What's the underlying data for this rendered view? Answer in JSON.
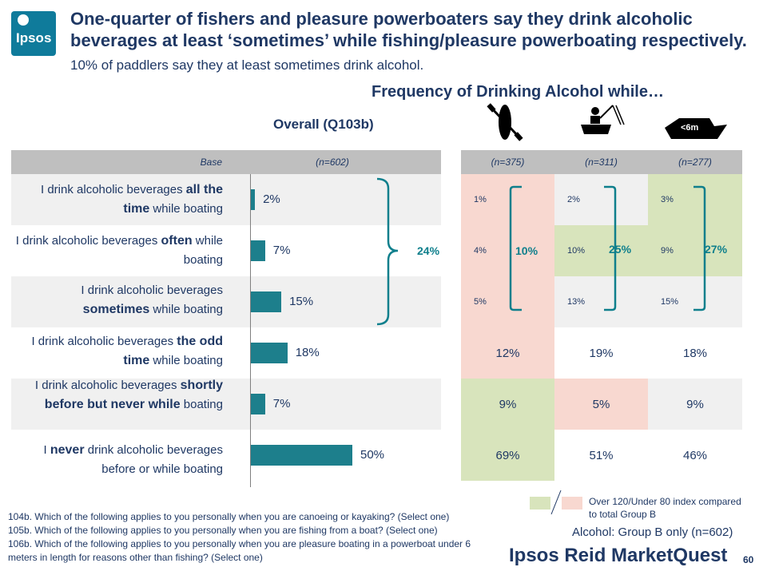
{
  "logo_text": "Ipsos",
  "headline_bold": "One-quarter of fishers and pleasure powerboaters say they drink alcoholic beverages at least ‘sometimes’ while fishing/pleasure powerboating respectively.",
  "headline_normal": " 10% of paddlers say they at least sometimes drink alcohol.",
  "subtitle": "Frequency of Drinking Alcohol while…",
  "overall_label": "Overall  (Q103b)",
  "base_label": "Base",
  "boat_icon_text": "<6m",
  "chart_data": {
    "type": "bar",
    "orientation": "horizontal",
    "categories": [
      "I drink alcoholic beverages all the time while boating",
      "I drink alcoholic beverages often while boating",
      "I drink alcoholic beverages sometimes while boating",
      "I drink alcoholic beverages the odd time while boating",
      "I drink alcoholic beverages shortly before but never while boating",
      "I never drink alcoholic beverages before or while boating"
    ],
    "series": [
      {
        "name": "Overall",
        "base": "(n=602)",
        "values": [
          2,
          7,
          15,
          18,
          7,
          50
        ],
        "labels": [
          "2%",
          "7%",
          "15%",
          "18%",
          "7%",
          "50%"
        ]
      }
    ],
    "xlim": [
      0,
      100
    ],
    "summary": {
      "overall": "24%"
    },
    "table_groups": [
      {
        "base": "(n=375)",
        "values": [
          "1%",
          "4%",
          "5%",
          "12%",
          "9%",
          "69%"
        ],
        "summary": "10%",
        "shading": [
          "pink",
          "pink",
          "pink",
          "pink",
          "green",
          "green"
        ]
      },
      {
        "base": "(n=311)",
        "values": [
          "2%",
          "10%",
          "13%",
          "19%",
          "5%",
          "51%"
        ],
        "summary": "25%",
        "shading": [
          "white",
          "green",
          "white",
          "white",
          "pink",
          "white"
        ]
      },
      {
        "base": "(n=277)",
        "values": [
          "3%",
          "9%",
          "15%",
          "18%",
          "9%",
          "46%"
        ],
        "summary": "27%",
        "shading": [
          "green",
          "green",
          "white",
          "white",
          "white",
          "white"
        ]
      }
    ]
  },
  "row_labels": [
    {
      "pre": "I drink alcoholic beverages ",
      "bold": "all the time",
      "post": " while boating"
    },
    {
      "pre": "I drink alcoholic beverages ",
      "bold": "often",
      "post": " while boating"
    },
    {
      "pre": "I drink alcoholic beverages ",
      "bold": "sometimes",
      "post": " while boating"
    },
    {
      "pre": "I drink alcoholic beverages ",
      "bold": "the odd time",
      "post": " while boating"
    },
    {
      "pre": "I drink alcoholic beverages ",
      "bold": "shortly before but never while",
      "post": " boating"
    },
    {
      "pre": "I ",
      "bold": "never",
      "post": " drink alcoholic beverages before or while boating"
    }
  ],
  "footnotes": [
    "104b. Which of the following applies to you personally when you are canoeing or kayaking? (Select one)",
    "105b. Which of the following applies to you personally when you are fishing from a boat? (Select one)",
    "106b. Which of the following applies to you personally when you are pleasure boating in a powerboat under 6 meters in length for reasons other than fishing? (Select one)"
  ],
  "legend_text": "Over 120/Under 80 index compared to total Group B",
  "group_b_note": "Alcohol: Group B only (n=602)",
  "brand": "Ipsos Reid MarketQuest",
  "page_number": "60",
  "colors": {
    "bar": "#1d7f8c",
    "green_cell": "#d8e4bc",
    "pink_cell": "#f8d8d0",
    "text": "#1f3864"
  }
}
